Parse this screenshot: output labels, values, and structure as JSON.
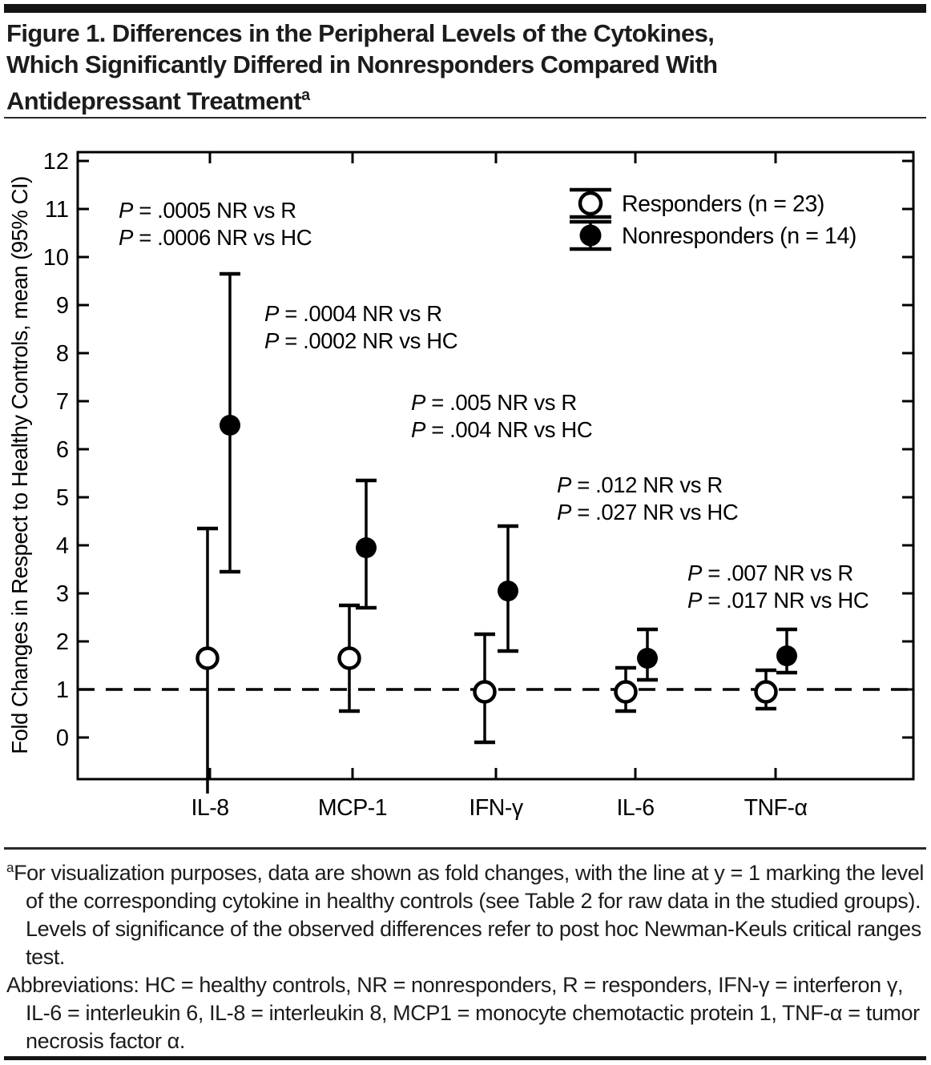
{
  "title": {
    "lines": [
      "Figure 1. Differences in the Peripheral Levels of the Cytokines,",
      "Which Significantly Differed in Nonresponders Compared With",
      "Antidepressant Treatment"
    ],
    "superscript": "a"
  },
  "chart_data": {
    "type": "scatter",
    "subtype": "point-estimates-with-95CI-error-bars",
    "title": "",
    "xlabel": "",
    "ylabel": "Fold Changes in Respect to Healthy Controls, mean (95% CI)",
    "ylim": [
      0,
      12
    ],
    "ytick_interval": 1,
    "yticks": [
      0,
      1,
      2,
      3,
      4,
      5,
      6,
      7,
      8,
      9,
      10,
      11,
      12
    ],
    "grid": false,
    "reference_line": {
      "y": 1,
      "style": "dashed",
      "meaning": "level of corresponding cytokine in healthy controls"
    },
    "categories": [
      "IL-8",
      "MCP-1",
      "IFN-γ",
      "IL-6",
      "TNF-α"
    ],
    "series": [
      {
        "name": "Responders (n = 23)",
        "marker": "open-circle",
        "means": [
          1.65,
          1.65,
          0.95,
          0.95,
          0.95
        ],
        "ci_low": [
          null,
          0.55,
          -0.1,
          0.55,
          0.6
        ],
        "ci_high": [
          4.35,
          2.75,
          2.15,
          1.45,
          1.4
        ],
        "note": "IL-8 lower CI bar extends below the plotted axis (no cap shown)"
      },
      {
        "name": "Nonresponders (n = 14)",
        "marker": "filled-circle",
        "means": [
          6.5,
          3.95,
          3.05,
          1.65,
          1.7
        ],
        "ci_low": [
          3.45,
          2.7,
          1.8,
          1.2,
          1.35
        ],
        "ci_high": [
          9.65,
          5.35,
          4.4,
          2.25,
          2.25
        ]
      }
    ],
    "legend": {
      "position": "top-right",
      "entries": [
        "Responders (n = 23)",
        "Nonresponders (n = 14)"
      ]
    },
    "annotations": [
      {
        "category": "IL-8",
        "lines": [
          "P = .0005 NR vs R",
          "P = .0006 NR vs HC"
        ]
      },
      {
        "category": "MCP-1",
        "lines": [
          "P = .0004 NR vs R",
          "P = .0002 NR vs HC"
        ]
      },
      {
        "category": "IFN-γ",
        "lines": [
          "P = .005 NR vs R",
          "P = .004 NR vs HC"
        ]
      },
      {
        "category": "IL-6",
        "lines": [
          "P = .012 NR vs R",
          "P = .027 NR vs HC"
        ]
      },
      {
        "category": "TNF-α",
        "lines": [
          "P = .007 NR vs R",
          "P = .017 NR vs HC"
        ]
      }
    ]
  },
  "footnote": {
    "sup": "a",
    "text": "For visualization purposes, data are shown as fold changes, with the line at y = 1 marking the level of the corresponding cytokine in healthy controls (see Table 2 for raw data in the studied groups). Levels of significance of the observed differences refer to post hoc Newman-Keuls critical ranges test."
  },
  "abbreviations": "Abbreviations: HC = healthy controls, NR = nonresponders, R = responders, IFN-γ = interferon γ, IL-6 = interleukin 6, IL-8 = interleukin 8, MCP1 = monocyte chemotactic protein 1, TNF-α = tumor necrosis factor α.",
  "colors": {
    "ink": "#1a1a1a",
    "plot_stroke": "#000000",
    "background": "#ffffff"
  }
}
